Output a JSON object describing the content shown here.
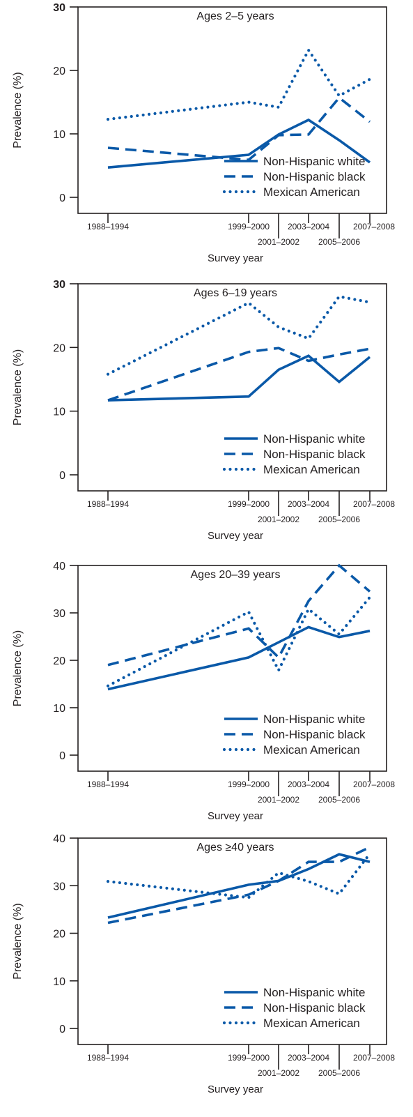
{
  "chart_data": [
    {
      "type": "line",
      "title": "Ages 2–5 years",
      "xlabel": "Survey year",
      "ylabel": "Prevalence (%)",
      "ylim": [
        0,
        30
      ],
      "yticks": [
        0,
        10,
        20,
        30
      ],
      "categories": [
        "1988–1994",
        "1999–2000",
        "2001–2002",
        "2003–2004",
        "2005–2006",
        "2007–2008"
      ],
      "legend_position": "bottom-right",
      "series": [
        {
          "name": "Non-Hispanic white",
          "style": "solid",
          "values": [
            4.7,
            6.7,
            9.9,
            12.2,
            9.0,
            5.5
          ]
        },
        {
          "name": "Non-Hispanic black",
          "style": "dashed",
          "values": [
            7.8,
            5.9,
            9.8,
            9.9,
            15.7,
            11.9
          ]
        },
        {
          "name": "Mexican American",
          "style": "dotted",
          "values": [
            12.3,
            15.0,
            14.2,
            23.2,
            16.0,
            18.6
          ]
        }
      ]
    },
    {
      "type": "line",
      "title": "Ages 6–19 years",
      "xlabel": "Survey year",
      "ylabel": "Prevalence (%)",
      "ylim": [
        0,
        30
      ],
      "yticks": [
        0,
        10,
        20,
        30
      ],
      "categories": [
        "1988–1994",
        "1999–2000",
        "2001–2002",
        "2003–2004",
        "2005–2006",
        "2007–2008"
      ],
      "legend_position": "bottom-right",
      "series": [
        {
          "name": "Non-Hispanic white",
          "style": "solid",
          "values": [
            11.7,
            12.3,
            16.5,
            18.7,
            14.6,
            18.5
          ]
        },
        {
          "name": "Non-Hispanic black",
          "style": "dashed",
          "values": [
            11.7,
            19.3,
            19.9,
            17.9,
            18.9,
            19.8
          ]
        },
        {
          "name": "Mexican American",
          "style": "dotted",
          "values": [
            15.8,
            27.0,
            23.2,
            21.4,
            28.0,
            27.1
          ]
        }
      ]
    },
    {
      "type": "line",
      "title": "Ages 20–39 years",
      "xlabel": "Survey year",
      "ylabel": "Prevalence (%)",
      "ylim": [
        0,
        40
      ],
      "yticks": [
        0,
        10,
        20,
        30,
        40
      ],
      "categories": [
        "1988–1994",
        "1999–2000",
        "2001–2002",
        "2003–2004",
        "2005–2006",
        "2007–2008"
      ],
      "legend_position": "bottom-right",
      "series": [
        {
          "name": "Non-Hispanic white",
          "style": "solid",
          "values": [
            13.9,
            20.6,
            23.8,
            27.0,
            24.9,
            26.2
          ]
        },
        {
          "name": "Non-Hispanic black",
          "style": "dashed",
          "values": [
            19.0,
            26.7,
            20.6,
            32.5,
            40.0,
            34.5
          ]
        },
        {
          "name": "Mexican American",
          "style": "dotted",
          "values": [
            14.6,
            30.2,
            17.9,
            30.8,
            25.5,
            33.3
          ]
        }
      ]
    },
    {
      "type": "line",
      "title": "Ages ≥40 years",
      "xlabel": "Survey year",
      "ylabel": "Prevalence (%)",
      "ylim": [
        0,
        40
      ],
      "yticks": [
        0,
        10,
        20,
        30,
        40
      ],
      "categories": [
        "1988–1994",
        "1999–2000",
        "2001–2002",
        "2003–2004",
        "2005–2006",
        "2007–2008"
      ],
      "legend_position": "bottom-right",
      "series": [
        {
          "name": "Non-Hispanic white",
          "style": "solid",
          "values": [
            23.3,
            30.2,
            31.0,
            33.5,
            36.6,
            35.0
          ]
        },
        {
          "name": "Non-Hispanic black",
          "style": "dashed",
          "values": [
            22.2,
            28.1,
            31.0,
            35.0,
            35.0,
            38.1
          ]
        },
        {
          "name": "Mexican American",
          "style": "dotted",
          "values": [
            30.9,
            27.5,
            32.7,
            30.9,
            28.3,
            36.7
          ]
        }
      ]
    }
  ],
  "colors": {
    "series": "#0a59a8",
    "axis": "#231f20",
    "text": "#231f20"
  }
}
